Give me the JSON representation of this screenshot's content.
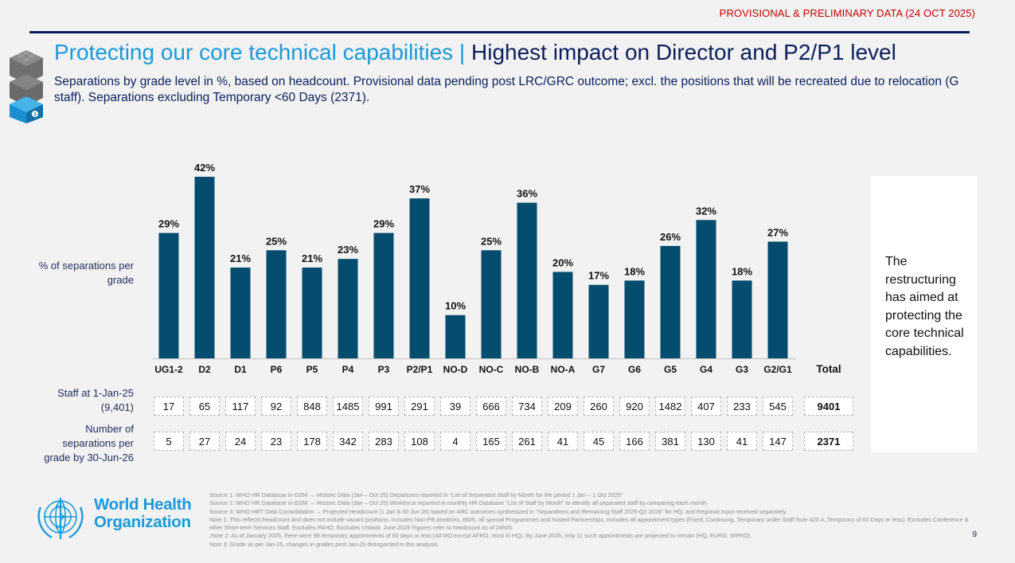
{
  "header": {
    "provisional_label": "PROVISIONAL & PRELIMINARY DATA (24 OCT 2025)",
    "title_part1": "Protecting our core technical capabilities | ",
    "title_part2": "Highest impact on Director and P2/P1 level",
    "subtitle": "Separations by grade level in %, based on headcount. Provisional data pending post LRC/GRC outcome; excl. the positions that will be recreated due to relocation (G staff). Separations excluding Temporary <60 Days (2371).",
    "section_badge": "3"
  },
  "colors": {
    "bar": "#034c6e",
    "title_accent": "#1a9ad9",
    "title_dark": "#0a1f5c",
    "provisional_red": "#c00000"
  },
  "chart_data": {
    "type": "bar",
    "title": "",
    "ylabel": "% of separations per grade",
    "xlabel": "",
    "ylim": [
      0,
      45
    ],
    "grid": false,
    "value_suffix": "%",
    "categories": [
      "UG1-2",
      "D2",
      "D1",
      "P6",
      "P5",
      "P4",
      "P3",
      "P2/P1",
      "NO-D",
      "NO-C",
      "NO-B",
      "NO-A",
      "G7",
      "G6",
      "G5",
      "G4",
      "G3",
      "G2/G1"
    ],
    "values": [
      29,
      42,
      21,
      25,
      21,
      23,
      29,
      37,
      10,
      25,
      36,
      20,
      17,
      18,
      26,
      32,
      18,
      27
    ],
    "total_label": "Total"
  },
  "table": {
    "staff_row_label": [
      "Staff at 1-Jan-25",
      "(9,401)"
    ],
    "separations_row_label": [
      "Number of",
      "separations per",
      "grade by 30-Jun-26"
    ],
    "staff": [
      17,
      65,
      117,
      92,
      848,
      1485,
      991,
      291,
      39,
      666,
      734,
      209,
      260,
      920,
      1482,
      407,
      233,
      545
    ],
    "separations": [
      5,
      27,
      24,
      23,
      178,
      342,
      283,
      108,
      4,
      165,
      261,
      41,
      45,
      166,
      381,
      130,
      41,
      147
    ],
    "staff_total": "9401",
    "separations_total": "2371"
  },
  "callout": "The restructuring has aimed at protecting the core technical capabilities.",
  "footer": {
    "org_name_line1": "World Health",
    "org_name_line2": "Organization",
    "notes": [
      "Source 1: WHO HR Database in GSM → Historic Data (Jan – Oct 25) Departures reported in “List of Separated Staff by Month for the period 1 Jan – 1 Oct 2025”",
      "Source 2: WHO HR Database in GSM → Historic Data (Jan – Oct 25) Workforce reported in monthly HR Database “List of Staff by Month” to identify all separated staff by comparing each month",
      "Source 3: WHO HRT Data Consolidation → Projected Headcount (1 Jan & 30 Jun 26) based on ARC outcomes synthesized in “Separations and Remaining Staff 2025-Q2 2026” for HQ; and Regional Input received separately",
      "Note 1: This reflects headcount and does not include vacant positions. Includes Non-PB positions, BMS, all special Programmes and hosted Partnerships. Includes all appointment types (Fixed, Continuing, Temporary under Staff Rule 420.4, Temporary of 60 Days or less). Excludes Conference & other Short-term Services Staff. Excludes PAHO. Excludes Unitaid. June 2026 Figures refer to headcount as of 24h00.",
      ".Note 2: As of January 2025, there were 99 temporary appointments of 60 days or less (All MO except AFRO, most in HQ). By June 2026, only 11 such appointments are projected to remain (HQ, EURO, WPRO).",
      "Note 3: Grade as per Jan-25, changes in grades post Jan-25 disregarded in this analysis."
    ],
    "page_number": "9"
  }
}
